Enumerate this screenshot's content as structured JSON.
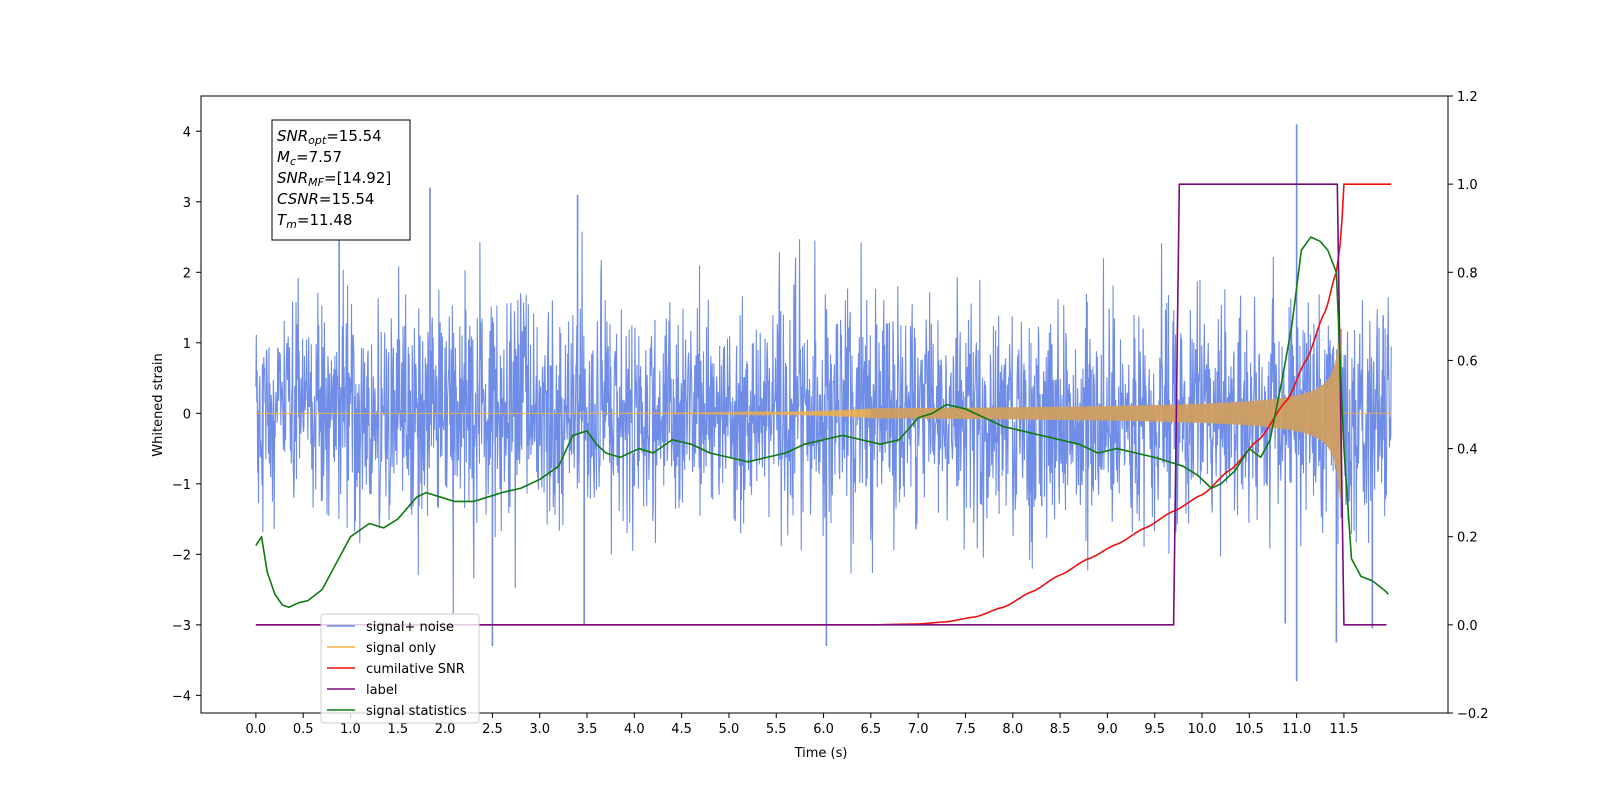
{
  "chart_data": {
    "type": "line",
    "xlabel": "Time (s)",
    "ylabel_left": "Whitened strain",
    "ylabel_right": "",
    "xlim": [
      -0.58,
      12.6
    ],
    "ylim_left": [
      -4.25,
      4.5
    ],
    "ylim_right": [
      -0.2,
      1.2
    ],
    "x_ticks": [
      0.0,
      0.5,
      1.0,
      1.5,
      2.0,
      2.5,
      3.0,
      3.5,
      4.0,
      4.5,
      5.0,
      5.5,
      6.0,
      6.5,
      7.0,
      7.5,
      8.0,
      8.5,
      9.0,
      9.5,
      10.0,
      10.5,
      11.0,
      11.5
    ],
    "x_tick_labels": [
      "0.0",
      "0.5",
      "1.0",
      "1.5",
      "2.0",
      "2.5",
      "3.0",
      "3.5",
      "4.0",
      "4.5",
      "5.0",
      "5.5",
      "6.0",
      "6.5",
      "7.0",
      "7.5",
      "8.0",
      "8.5",
      "9.0",
      "9.5",
      "10.0",
      "10.5",
      "11.0",
      "11.5"
    ],
    "y_ticks_left": [
      4,
      3,
      2,
      1,
      0,
      -1,
      -2,
      -3,
      -4
    ],
    "y_tick_labels_left": [
      "4",
      "3",
      "2",
      "1",
      "0",
      "−1",
      "−2",
      "−3",
      "−4"
    ],
    "y_ticks_right": [
      1.2,
      1.0,
      0.8,
      0.6,
      0.4,
      0.2,
      0.0,
      -0.2
    ],
    "y_tick_labels_right": [
      "1.2",
      "1.0",
      "0.8",
      "0.6",
      "0.4",
      "0.2",
      "0.0",
      "−0.2"
    ],
    "grid": false,
    "legend_position": "lower-left",
    "annotation": [
      {
        "base": "SNR",
        "sub": "opt",
        "value": "=15.54"
      },
      {
        "base": "M",
        "sub": "c",
        "value": "=7.57"
      },
      {
        "base": "SNR",
        "sub": "MF",
        "value": "=[14.92]"
      },
      {
        "base": "CSNR",
        "sub": "",
        "value": "=15.54"
      },
      {
        "base": "T",
        "sub": "m",
        "value": "=11.48"
      }
    ],
    "series": [
      {
        "name": "signal+ noise",
        "axis": "left",
        "color": "#6f8de6",
        "x_range": [
          0.0,
          12.0
        ],
        "noise_std": 0.78,
        "outlier_spikes": [
          {
            "x": 0.88,
            "y": 3.2
          },
          {
            "x": 1.84,
            "y": 3.2
          },
          {
            "x": 3.4,
            "y": 3.1
          },
          {
            "x": 2.5,
            "y": -3.3
          },
          {
            "x": 3.47,
            "y": -3.0
          },
          {
            "x": 6.03,
            "y": -3.3
          },
          {
            "x": 11.0,
            "y": 4.1
          },
          {
            "x": 11.0,
            "y": -3.8
          },
          {
            "x": 11.42,
            "y": -3.25
          },
          {
            "x": 11.8,
            "y": -3.05
          },
          {
            "x": 10.88,
            "y": -2.98
          }
        ]
      },
      {
        "name": "signal only",
        "axis": "left",
        "color": "#f5b041",
        "type": "chirp",
        "t_merger": 11.48,
        "amplitude_at_merger": 1.2
      },
      {
        "name": "cumilative SNR",
        "axis": "right",
        "color": "#ee1111",
        "x": [
          0.0,
          6.5,
          7.0,
          7.3,
          7.6,
          7.9,
          8.2,
          8.5,
          8.8,
          9.1,
          9.4,
          9.7,
          10.0,
          10.3,
          10.6,
          10.9,
          11.1,
          11.3,
          11.42,
          11.47,
          11.5,
          11.75,
          12.0
        ],
        "y": [
          0.0,
          0.0,
          0.002,
          0.007,
          0.018,
          0.04,
          0.075,
          0.113,
          0.15,
          0.183,
          0.22,
          0.258,
          0.295,
          0.352,
          0.42,
          0.51,
          0.6,
          0.71,
          0.8,
          0.88,
          1.0,
          1.0,
          1.0
        ]
      },
      {
        "name": "label",
        "axis": "right",
        "color": "#7b0a7b",
        "x": [
          0.0,
          9.7,
          9.76,
          11.43,
          11.5,
          11.95
        ],
        "y": [
          0.0,
          0.0,
          1.0,
          1.0,
          0.0,
          0.0
        ]
      },
      {
        "name": "signal statistics",
        "axis": "right",
        "color": "#0f7a0f",
        "x": [
          0.0,
          0.06,
          0.12,
          0.2,
          0.28,
          0.35,
          0.45,
          0.55,
          0.7,
          0.85,
          1.0,
          1.2,
          1.35,
          1.5,
          1.7,
          1.8,
          1.95,
          2.1,
          2.3,
          2.45,
          2.6,
          2.8,
          3.0,
          3.2,
          3.35,
          3.5,
          3.6,
          3.7,
          3.85,
          4.05,
          4.2,
          4.4,
          4.6,
          4.8,
          5.0,
          5.2,
          5.4,
          5.6,
          5.8,
          6.0,
          6.2,
          6.4,
          6.6,
          6.8,
          7.0,
          7.15,
          7.3,
          7.5,
          7.7,
          7.9,
          8.1,
          8.3,
          8.5,
          8.7,
          8.9,
          9.1,
          9.3,
          9.5,
          9.65,
          9.8,
          9.95,
          10.1,
          10.2,
          10.35,
          10.5,
          10.62,
          10.72,
          10.85,
          10.95,
          11.05,
          11.15,
          11.25,
          11.33,
          11.42,
          11.5,
          11.58,
          11.68,
          11.8,
          11.92,
          11.97
        ],
        "y": [
          0.18,
          0.2,
          0.12,
          0.07,
          0.045,
          0.04,
          0.05,
          0.055,
          0.08,
          0.14,
          0.2,
          0.23,
          0.22,
          0.24,
          0.29,
          0.3,
          0.29,
          0.28,
          0.28,
          0.29,
          0.3,
          0.31,
          0.33,
          0.36,
          0.43,
          0.44,
          0.41,
          0.39,
          0.38,
          0.4,
          0.39,
          0.42,
          0.41,
          0.39,
          0.38,
          0.37,
          0.38,
          0.39,
          0.41,
          0.42,
          0.43,
          0.42,
          0.41,
          0.42,
          0.47,
          0.48,
          0.5,
          0.49,
          0.47,
          0.45,
          0.44,
          0.43,
          0.42,
          0.41,
          0.39,
          0.4,
          0.39,
          0.38,
          0.37,
          0.36,
          0.34,
          0.31,
          0.32,
          0.35,
          0.4,
          0.38,
          0.42,
          0.56,
          0.68,
          0.85,
          0.88,
          0.87,
          0.85,
          0.8,
          0.4,
          0.15,
          0.11,
          0.1,
          0.08,
          0.07
        ]
      }
    ],
    "legend_entries": [
      {
        "label": "signal+ noise",
        "color": "#6f8de6"
      },
      {
        "label": "signal only",
        "color": "#f5b041"
      },
      {
        "label": "cumilative SNR",
        "color": "#ee1111"
      },
      {
        "label": "label",
        "color": "#7b0a7b"
      },
      {
        "label": "signal statistics",
        "color": "#0f7a0f"
      }
    ]
  }
}
